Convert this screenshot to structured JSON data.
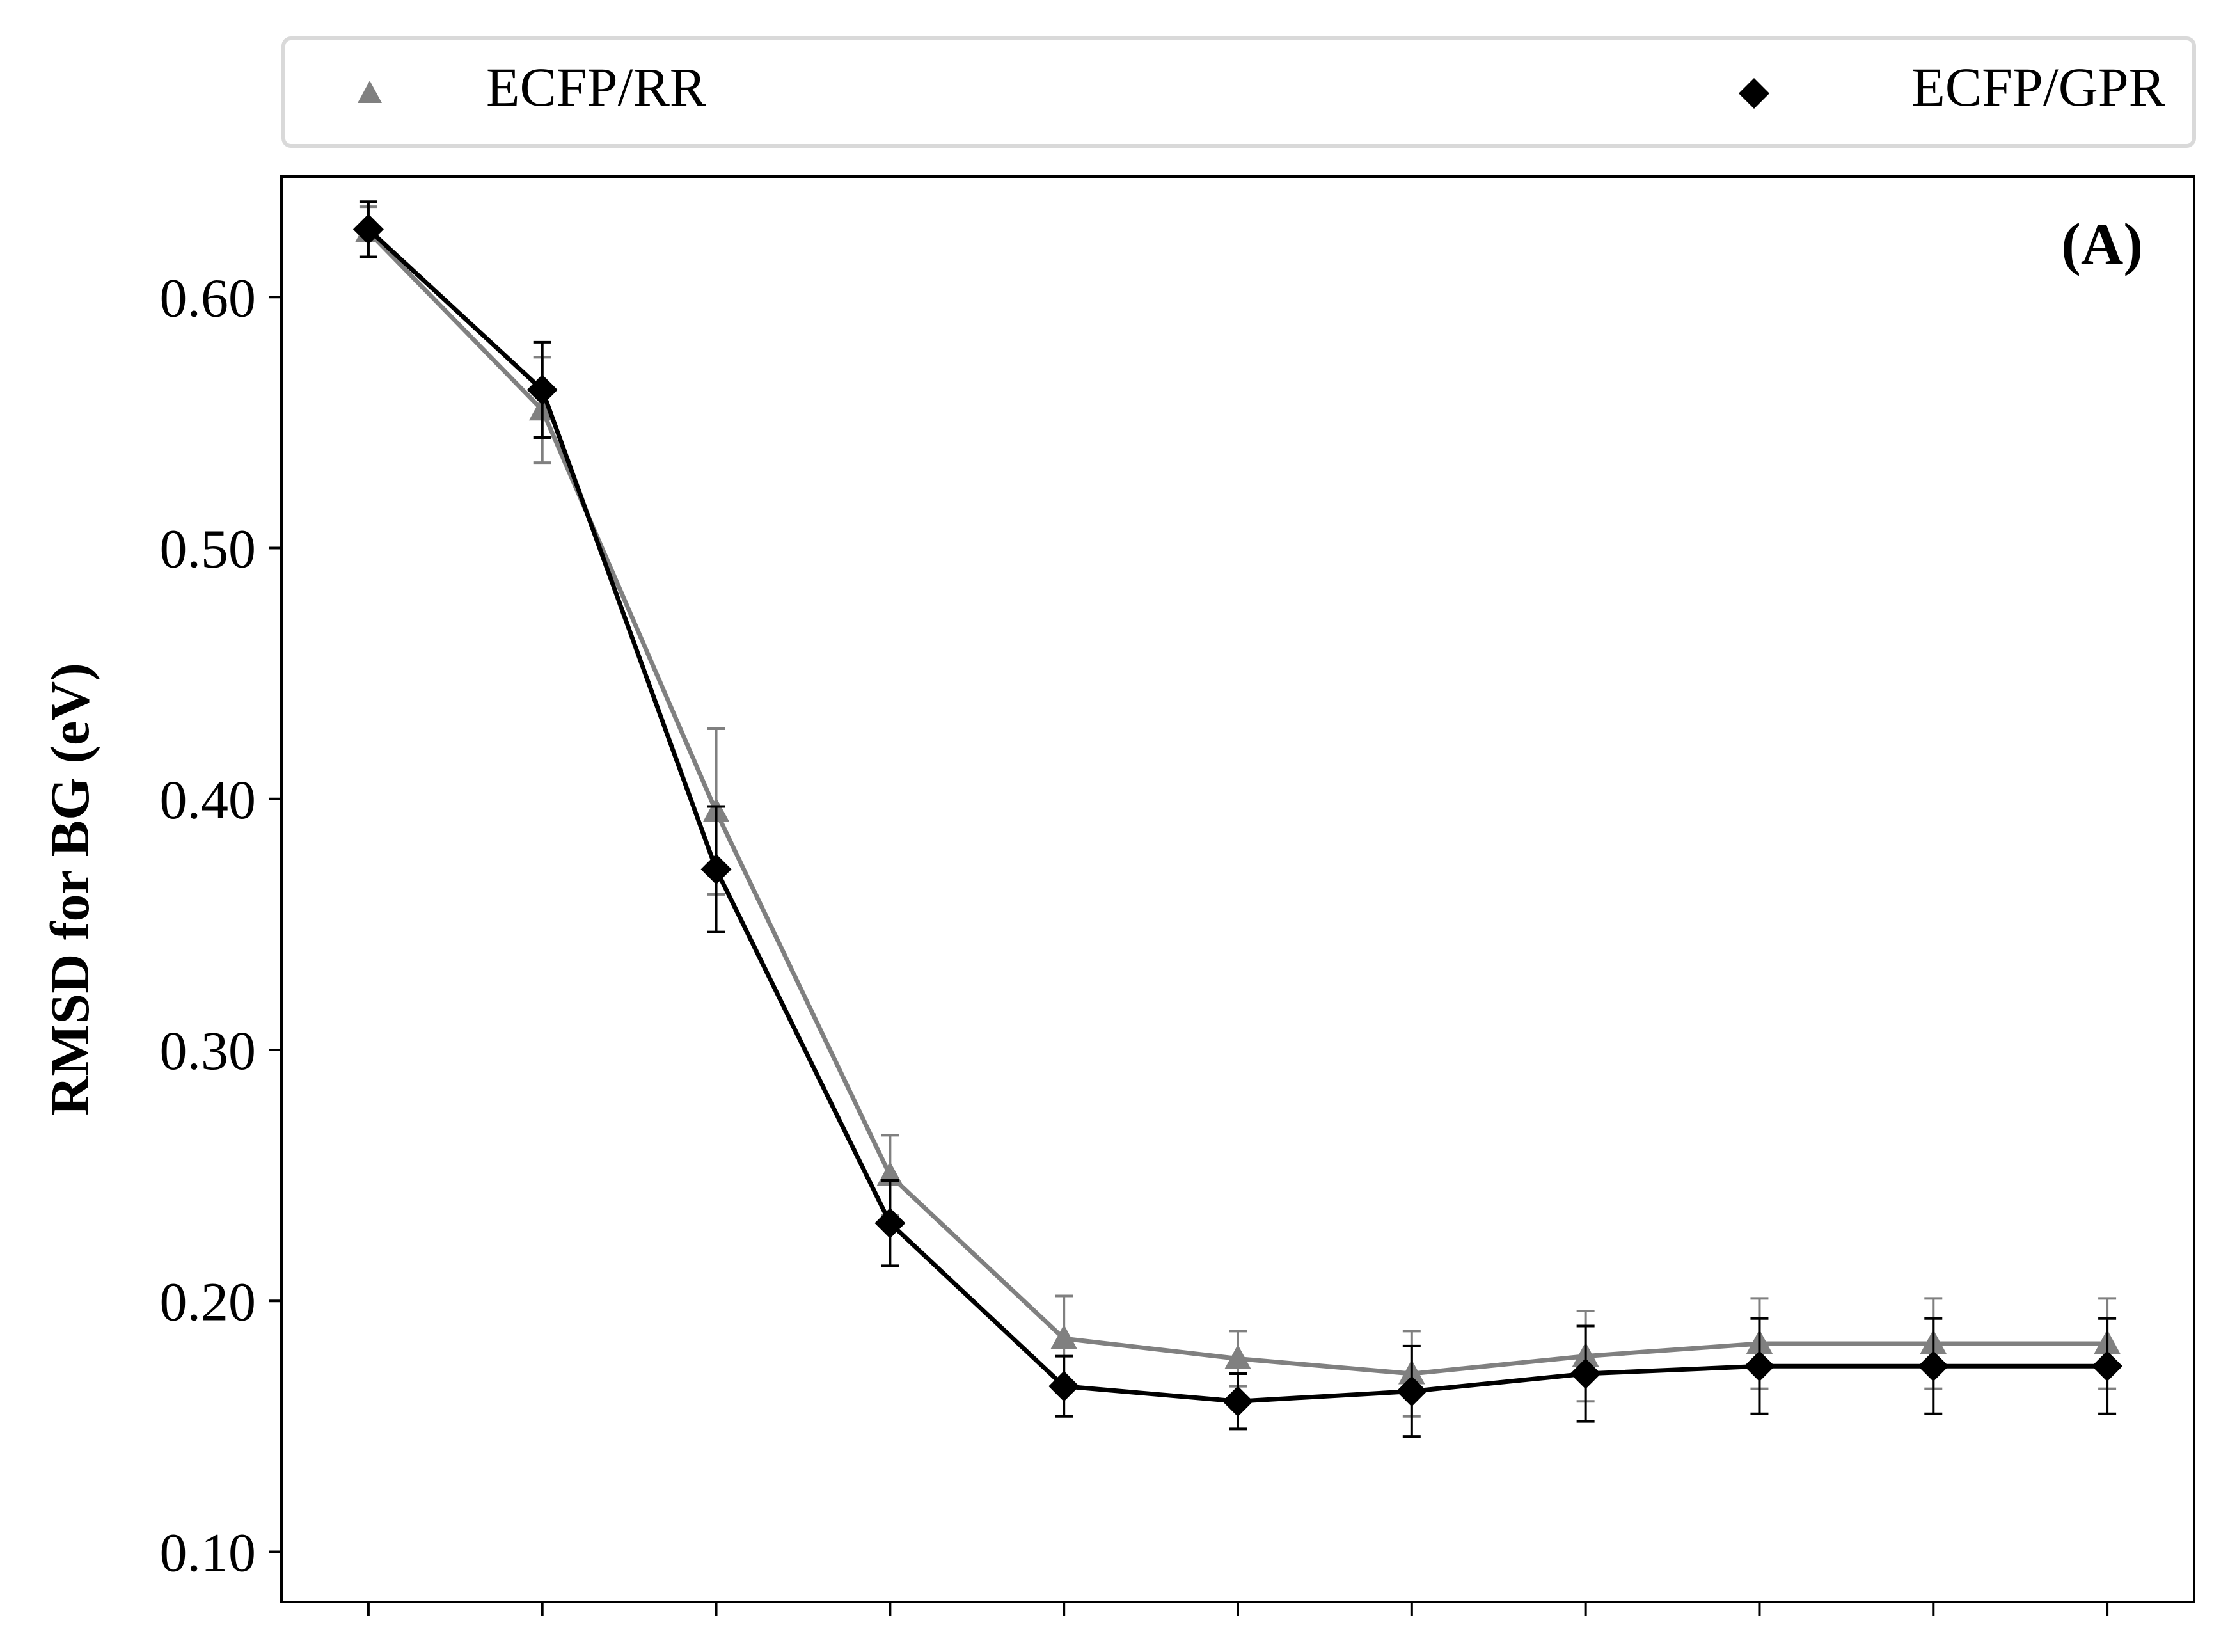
{
  "chart_data": {
    "type": "line",
    "panel_label": "(A)",
    "title": "",
    "xlabel": "",
    "ylabel": "RMSD for BG (eV)",
    "ylim": [
      0.08,
      0.648
    ],
    "xlim": [
      0.5,
      11.5
    ],
    "yticks": [
      0.1,
      0.2,
      0.3,
      0.4,
      0.5,
      0.6
    ],
    "ytick_labels": [
      "0.10",
      "0.20",
      "0.30",
      "0.40",
      "0.50",
      "0.60"
    ],
    "x": [
      1,
      2,
      3,
      4,
      5,
      6,
      7,
      8,
      9,
      10,
      11
    ],
    "xtick_labels": [],
    "grid": false,
    "legend_position": "top, above plot",
    "series": [
      {
        "name": "ECFP/RR",
        "marker": "triangle",
        "color": "#808080",
        "values": [
          0.626,
          0.555,
          0.395,
          0.25,
          0.185,
          0.177,
          0.171,
          0.178,
          0.183,
          0.183,
          0.183
        ],
        "errors": [
          0.01,
          0.021,
          0.033,
          0.016,
          0.017,
          0.011,
          0.017,
          0.018,
          0.018,
          0.018,
          0.018
        ]
      },
      {
        "name": "ECFP/GPR",
        "marker": "diamond",
        "color": "#000000",
        "values": [
          0.627,
          0.563,
          0.372,
          0.231,
          0.166,
          0.16,
          0.164,
          0.171,
          0.174,
          0.174,
          0.174
        ],
        "errors": [
          0.011,
          0.019,
          0.025,
          0.017,
          0.012,
          0.011,
          0.018,
          0.019,
          0.019,
          0.019,
          0.019
        ]
      }
    ]
  }
}
